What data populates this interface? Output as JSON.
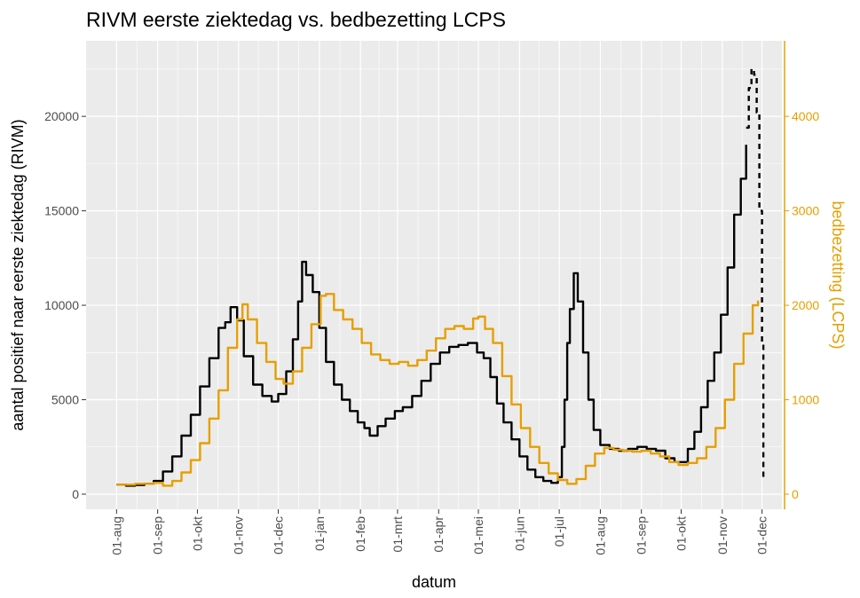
{
  "chart_data": {
    "type": "line",
    "title": "RIVM eerste ziektedag vs. bedbezetting LCPS",
    "xlabel": "datum",
    "ylabel_left": "aantal positief naar eerste ziektedag (RIVM)",
    "ylabel_right": "bedbezetting (LCPS)",
    "x_ticks": [
      "01-aug",
      "01-sep",
      "01-okt",
      "01-nov",
      "01-dec",
      "01-jan",
      "01-feb",
      "01-mrt",
      "01-apr",
      "01-mei",
      "01-jun",
      "01-jul",
      "01-aug",
      "01-sep",
      "01-okt",
      "01-nov",
      "01-dec"
    ],
    "y_left_ticks": [
      "0",
      "5000",
      "10000",
      "15000",
      "20000"
    ],
    "y_right_ticks": [
      "0",
      "1000",
      "2000",
      "3000",
      "4000"
    ],
    "y_left_range": [
      -800,
      24000
    ],
    "y_right_range": [
      -160,
      4800
    ],
    "x_range_days": [
      -23,
      502
    ],
    "grid": true,
    "colors": {
      "rivm": "#000000",
      "lcps": "#E69F00",
      "panel": "#EBEBEB",
      "grid": "#FFFFFF"
    },
    "series": [
      {
        "axis": "left",
        "color": "#000000",
        "style": "solid",
        "points": [
          [
            "2020-08-01",
            500
          ],
          [
            "2020-08-08",
            450
          ],
          [
            "2020-08-15",
            480
          ],
          [
            "2020-08-22",
            550
          ],
          [
            "2020-08-29",
            700
          ],
          [
            "2020-09-05",
            1200
          ],
          [
            "2020-09-12",
            2000
          ],
          [
            "2020-09-19",
            3100
          ],
          [
            "2020-09-26",
            4200
          ],
          [
            "2020-10-03",
            5700
          ],
          [
            "2020-10-10",
            7200
          ],
          [
            "2020-10-17",
            8800
          ],
          [
            "2020-10-22",
            9100
          ],
          [
            "2020-10-26",
            9900
          ],
          [
            "2020-10-31",
            9200
          ],
          [
            "2020-11-05",
            7300
          ],
          [
            "2020-11-12",
            5800
          ],
          [
            "2020-11-19",
            5200
          ],
          [
            "2020-11-26",
            4900
          ],
          [
            "2020-12-01",
            5300
          ],
          [
            "2020-12-07",
            6500
          ],
          [
            "2020-12-12",
            8200
          ],
          [
            "2020-12-16",
            10200
          ],
          [
            "2020-12-19",
            12300
          ],
          [
            "2020-12-22",
            11600
          ],
          [
            "2020-12-27",
            10700
          ],
          [
            "2021-01-01",
            8800
          ],
          [
            "2021-01-06",
            7000
          ],
          [
            "2021-01-12",
            5800
          ],
          [
            "2021-01-18",
            5000
          ],
          [
            "2021-01-24",
            4400
          ],
          [
            "2021-01-30",
            3800
          ],
          [
            "2021-02-04",
            3500
          ],
          [
            "2021-02-08",
            3100
          ],
          [
            "2021-02-14",
            3600
          ],
          [
            "2021-02-20",
            4000
          ],
          [
            "2021-02-27",
            4400
          ],
          [
            "2021-03-05",
            4600
          ],
          [
            "2021-03-12",
            5200
          ],
          [
            "2021-03-19",
            6000
          ],
          [
            "2021-03-26",
            6900
          ],
          [
            "2021-04-02",
            7500
          ],
          [
            "2021-04-09",
            7800
          ],
          [
            "2021-04-16",
            7900
          ],
          [
            "2021-04-23",
            8000
          ],
          [
            "2021-04-30",
            7500
          ],
          [
            "2021-05-05",
            7200
          ],
          [
            "2021-05-10",
            6200
          ],
          [
            "2021-05-15",
            4800
          ],
          [
            "2021-05-20",
            3800
          ],
          [
            "2021-05-26",
            2900
          ],
          [
            "2021-06-01",
            2000
          ],
          [
            "2021-06-07",
            1300
          ],
          [
            "2021-06-13",
            900
          ],
          [
            "2021-06-19",
            700
          ],
          [
            "2021-06-25",
            600
          ],
          [
            "2021-06-30",
            900
          ],
          [
            "2021-07-03",
            2500
          ],
          [
            "2021-07-05",
            5000
          ],
          [
            "2021-07-07",
            8000
          ],
          [
            "2021-07-09",
            9800
          ],
          [
            "2021-07-12",
            11700
          ],
          [
            "2021-07-15",
            10200
          ],
          [
            "2021-07-19",
            7500
          ],
          [
            "2021-07-23",
            5000
          ],
          [
            "2021-07-27",
            3400
          ],
          [
            "2021-08-01",
            2600
          ],
          [
            "2021-08-08",
            2400
          ],
          [
            "2021-08-15",
            2300
          ],
          [
            "2021-08-22",
            2400
          ],
          [
            "2021-08-29",
            2500
          ],
          [
            "2021-09-05",
            2400
          ],
          [
            "2021-09-12",
            2300
          ],
          [
            "2021-09-19",
            1900
          ],
          [
            "2021-09-26",
            1700
          ],
          [
            "2021-10-01",
            1700
          ],
          [
            "2021-10-06",
            2400
          ],
          [
            "2021-10-11",
            3300
          ],
          [
            "2021-10-16",
            4600
          ],
          [
            "2021-10-21",
            6000
          ],
          [
            "2021-10-26",
            7500
          ],
          [
            "2021-10-31",
            9500
          ],
          [
            "2021-11-05",
            12000
          ],
          [
            "2021-11-10",
            14800
          ],
          [
            "2021-11-15",
            16700
          ],
          [
            "2021-11-19",
            18500
          ]
        ]
      },
      {
        "axis": "left",
        "color": "#000000",
        "style": "dashed",
        "points": [
          [
            "2021-11-19",
            19400
          ],
          [
            "2021-11-21",
            21500
          ],
          [
            "2021-11-23",
            22500
          ],
          [
            "2021-11-25",
            22200
          ],
          [
            "2021-11-27",
            20200
          ],
          [
            "2021-11-29",
            15000
          ],
          [
            "2021-12-01",
            8000
          ],
          [
            "2021-12-02",
            900
          ]
        ]
      },
      {
        "axis": "right",
        "color": "#E69F00",
        "style": "solid",
        "points": [
          [
            "2020-08-01",
            100
          ],
          [
            "2020-08-15",
            110
          ],
          [
            "2020-08-29",
            120
          ],
          [
            "2020-09-05",
            90
          ],
          [
            "2020-09-12",
            140
          ],
          [
            "2020-09-19",
            230
          ],
          [
            "2020-09-26",
            360
          ],
          [
            "2020-10-03",
            540
          ],
          [
            "2020-10-10",
            800
          ],
          [
            "2020-10-17",
            1100
          ],
          [
            "2020-10-24",
            1550
          ],
          [
            "2020-10-31",
            1850
          ],
          [
            "2020-11-04",
            2010
          ],
          [
            "2020-11-08",
            1850
          ],
          [
            "2020-11-15",
            1600
          ],
          [
            "2020-11-22",
            1400
          ],
          [
            "2020-11-29",
            1220
          ],
          [
            "2020-12-05",
            1170
          ],
          [
            "2020-12-12",
            1300
          ],
          [
            "2020-12-19",
            1550
          ],
          [
            "2020-12-26",
            1800
          ],
          [
            "2021-01-02",
            2100
          ],
          [
            "2021-01-06",
            2120
          ],
          [
            "2021-01-12",
            1950
          ],
          [
            "2021-01-19",
            1850
          ],
          [
            "2021-01-26",
            1750
          ],
          [
            "2021-02-02",
            1600
          ],
          [
            "2021-02-09",
            1480
          ],
          [
            "2021-02-16",
            1420
          ],
          [
            "2021-02-23",
            1380
          ],
          [
            "2021-03-02",
            1400
          ],
          [
            "2021-03-09",
            1360
          ],
          [
            "2021-03-16",
            1420
          ],
          [
            "2021-03-23",
            1520
          ],
          [
            "2021-03-30",
            1650
          ],
          [
            "2021-04-06",
            1750
          ],
          [
            "2021-04-13",
            1780
          ],
          [
            "2021-04-20",
            1750
          ],
          [
            "2021-04-27",
            1860
          ],
          [
            "2021-05-01",
            1880
          ],
          [
            "2021-05-06",
            1750
          ],
          [
            "2021-05-12",
            1600
          ],
          [
            "2021-05-19",
            1250
          ],
          [
            "2021-05-26",
            950
          ],
          [
            "2021-06-02",
            700
          ],
          [
            "2021-06-09",
            500
          ],
          [
            "2021-06-16",
            330
          ],
          [
            "2021-06-23",
            220
          ],
          [
            "2021-06-30",
            150
          ],
          [
            "2021-07-07",
            110
          ],
          [
            "2021-07-14",
            160
          ],
          [
            "2021-07-21",
            300
          ],
          [
            "2021-07-28",
            430
          ],
          [
            "2021-08-04",
            490
          ],
          [
            "2021-08-11",
            470
          ],
          [
            "2021-08-18",
            460
          ],
          [
            "2021-08-25",
            450
          ],
          [
            "2021-09-01",
            460
          ],
          [
            "2021-09-08",
            430
          ],
          [
            "2021-09-15",
            400
          ],
          [
            "2021-09-22",
            340
          ],
          [
            "2021-09-29",
            310
          ],
          [
            "2021-10-06",
            330
          ],
          [
            "2021-10-13",
            380
          ],
          [
            "2021-10-20",
            500
          ],
          [
            "2021-10-27",
            700
          ],
          [
            "2021-11-03",
            1000
          ],
          [
            "2021-11-10",
            1380
          ],
          [
            "2021-11-17",
            1700
          ],
          [
            "2021-11-24",
            2000
          ],
          [
            "2021-11-28",
            2050
          ]
        ]
      }
    ]
  }
}
